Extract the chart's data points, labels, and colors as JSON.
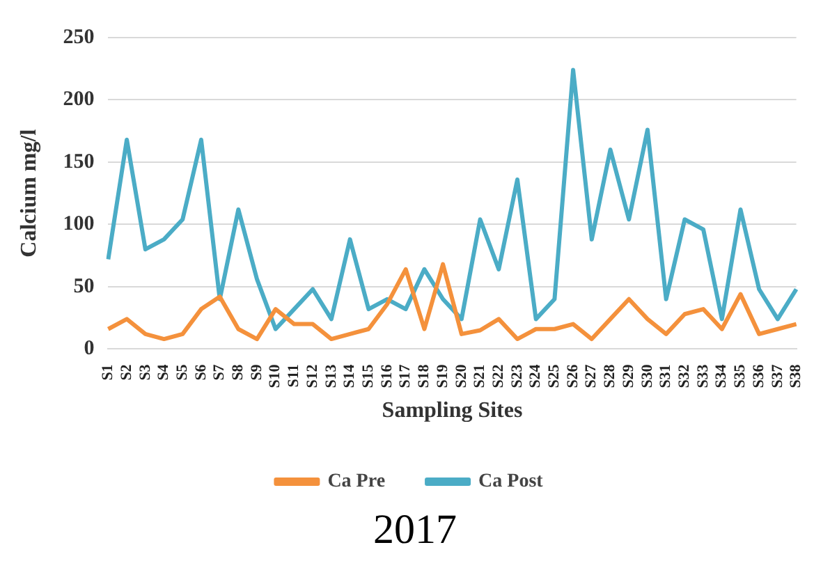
{
  "chart_data": {
    "type": "line",
    "xlabel": "Sampling Sites",
    "ylabel": "Calcium mg/l",
    "annotations": [
      "2017"
    ],
    "categories": [
      "S1",
      "S2",
      "S3",
      "S4",
      "S5",
      "S6",
      "S7",
      "S8",
      "S9",
      "S10",
      "S11",
      "S12",
      "S13",
      "S14",
      "S15",
      "S16",
      "S17",
      "S18",
      "S19",
      "S20",
      "S21",
      "S22",
      "S23",
      "S24",
      "S25",
      "S26",
      "S27",
      "S28",
      "S29",
      "S30",
      "S31",
      "S32",
      "S33",
      "S34",
      "S35",
      "S36",
      "S37",
      "S38"
    ],
    "series": [
      {
        "name": "Ca Pre",
        "color": "#f4913c",
        "values": [
          16,
          24,
          12,
          8,
          12,
          32,
          42,
          16,
          8,
          32,
          20,
          20,
          8,
          12,
          16,
          36,
          64,
          16,
          68,
          12,
          15,
          24,
          8,
          16,
          16,
          20,
          8,
          24,
          40,
          24,
          12,
          28,
          32,
          16,
          44,
          12,
          16,
          20
        ]
      },
      {
        "name": "Ca Post",
        "color": "#4bacc6",
        "values": [
          72,
          168,
          80,
          88,
          104,
          168,
          40,
          112,
          56,
          16,
          32,
          48,
          24,
          88,
          32,
          40,
          32,
          64,
          40,
          24,
          104,
          64,
          136,
          24,
          40,
          224,
          88,
          160,
          104,
          176,
          40,
          104,
          96,
          24,
          112,
          48,
          24,
          48
        ]
      }
    ],
    "ylim": [
      0,
      250
    ],
    "yticks": [
      0,
      50,
      100,
      150,
      200,
      250
    ],
    "grid": "y",
    "legend": "bottom",
    "marker": "none",
    "line_style": "solid"
  }
}
